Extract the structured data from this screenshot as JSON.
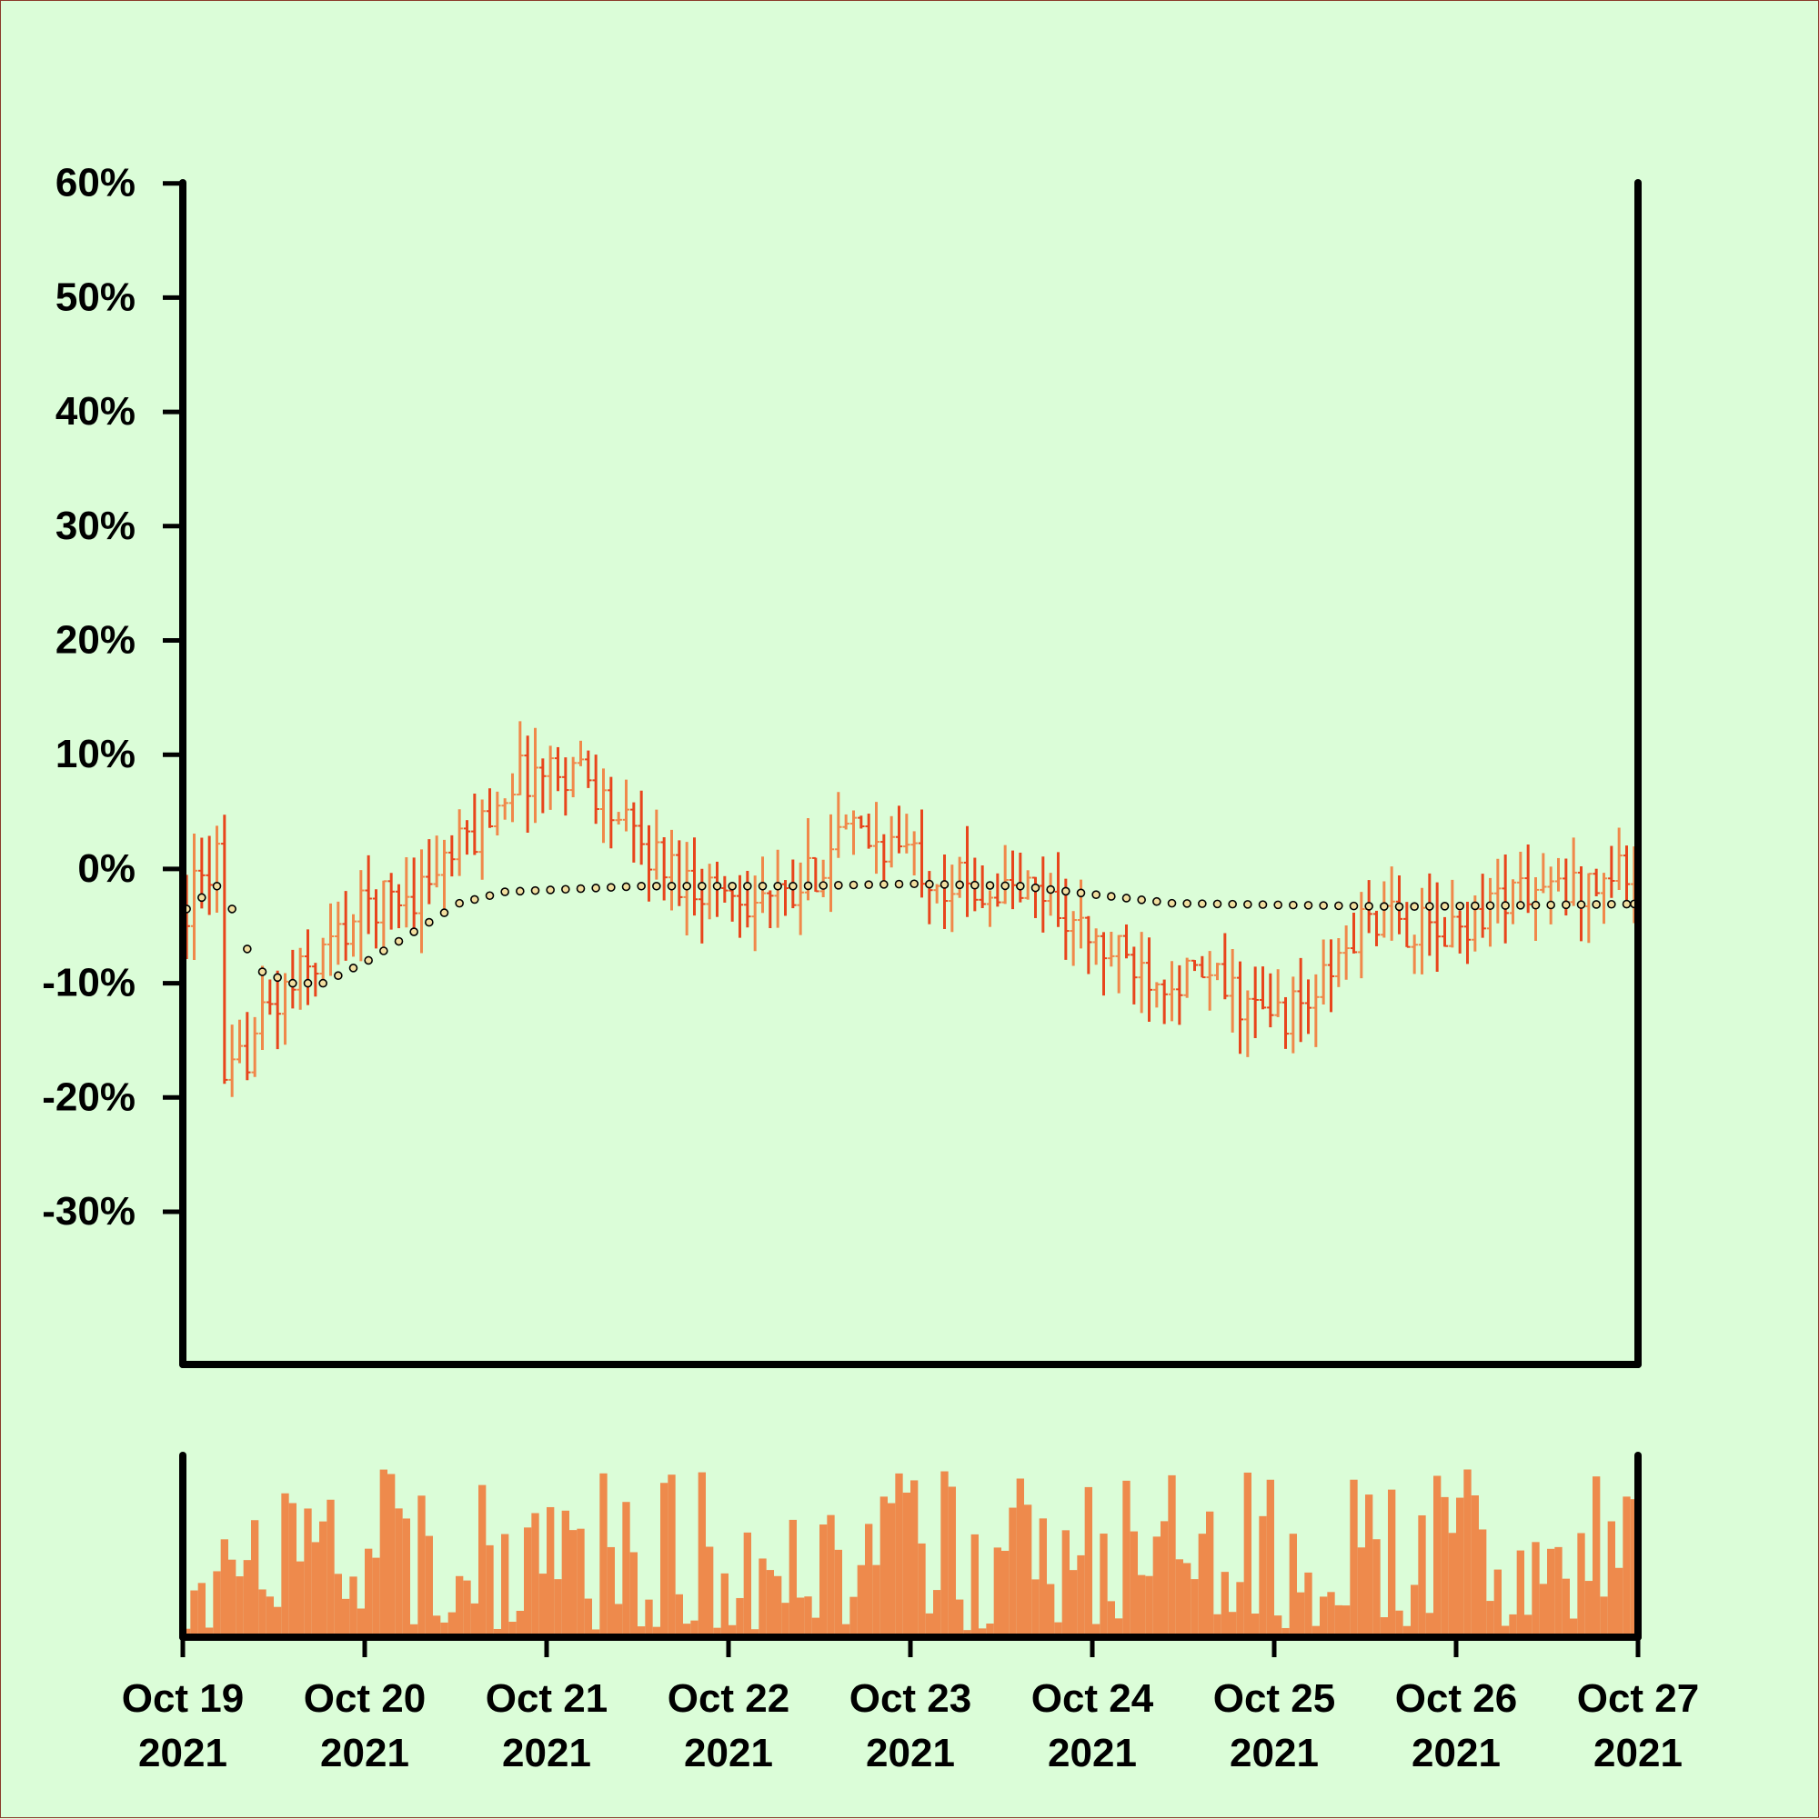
{
  "chart_data": {
    "type": "ohlc",
    "title": "",
    "xlabel": "",
    "ylabel": "",
    "ylim": [
      -37,
      63
    ],
    "y_tick_values": [
      60,
      50,
      40,
      30,
      20,
      10,
      0,
      -10,
      -20,
      -30
    ],
    "y_tick_labels": [
      "60%",
      "50%",
      "40%",
      "30%",
      "20%",
      "10%",
      "0%",
      "-10%",
      "-20%",
      "-30%"
    ],
    "x_ticks": [
      {
        "day": 0,
        "line1": "Oct 19",
        "line2": "2021"
      },
      {
        "day": 1,
        "line1": "Oct 20",
        "line2": "2021"
      },
      {
        "day": 2,
        "line1": "Oct 21",
        "line2": "2021"
      },
      {
        "day": 3,
        "line1": "Oct 22",
        "line2": "2021"
      },
      {
        "day": 4,
        "line1": "Oct 23",
        "line2": "2021"
      },
      {
        "day": 5,
        "line1": "Oct 24",
        "line2": "2021"
      },
      {
        "day": 6,
        "line1": "Oct 25",
        "line2": "2021"
      },
      {
        "day": 7,
        "line1": "Oct 26",
        "line2": "2021"
      },
      {
        "day": 8,
        "line1": "Oct 27",
        "line2": "2021"
      }
    ],
    "grid": false,
    "legend": "none",
    "bars_per_day": 24,
    "price_anchors_percent": [
      [
        0,
        -3
      ],
      [
        4,
        1
      ],
      [
        5,
        -20
      ],
      [
        10,
        -13
      ],
      [
        17,
        -8
      ],
      [
        24,
        -3
      ],
      [
        30,
        -2
      ],
      [
        38,
        3
      ],
      [
        43,
        8
      ],
      [
        52,
        9
      ],
      [
        56,
        5
      ],
      [
        60,
        2
      ],
      [
        66,
        -1
      ],
      [
        72,
        -2
      ],
      [
        80,
        -3
      ],
      [
        86,
        3
      ],
      [
        94,
        2
      ],
      [
        100,
        -1
      ],
      [
        108,
        -2
      ],
      [
        113,
        -2
      ],
      [
        120,
        -7
      ],
      [
        128,
        -9
      ],
      [
        136,
        -10
      ],
      [
        142,
        -13
      ],
      [
        148,
        -12
      ],
      [
        156,
        -4
      ],
      [
        166,
        -6
      ],
      [
        174,
        -2
      ],
      [
        182,
        -2
      ],
      [
        190,
        0
      ],
      [
        198,
        -1
      ],
      [
        206,
        -1
      ],
      [
        212,
        2
      ],
      [
        218,
        2
      ],
      [
        224,
        -4
      ],
      [
        232,
        -7
      ],
      [
        240,
        -8
      ],
      [
        246,
        -12
      ],
      [
        252,
        -14
      ],
      [
        260,
        -12
      ],
      [
        266,
        -11
      ],
      [
        272,
        -10
      ],
      [
        280,
        -8
      ],
      [
        288,
        -7
      ]
    ],
    "sma_percent": [
      [
        0,
        -3.5
      ],
      [
        5,
        -1
      ],
      [
        7,
        -6
      ],
      [
        10,
        -9
      ],
      [
        14,
        -10
      ],
      [
        18,
        -10
      ],
      [
        24,
        -8
      ],
      [
        36,
        -3
      ],
      [
        42,
        -2
      ],
      [
        60,
        -1.5
      ],
      [
        80,
        -1.5
      ],
      [
        96,
        -1.3
      ],
      [
        110,
        -1.5
      ],
      [
        130,
        -3
      ],
      [
        160,
        -3.3
      ],
      [
        200,
        -3
      ],
      [
        220,
        -3.2
      ],
      [
        280,
        -4
      ],
      [
        288,
        -4.2
      ]
    ],
    "volume_range": [
      2,
      100
    ],
    "colors": {
      "background": "#dbfdd8",
      "up": "#f0884a",
      "down": "#e8451c",
      "volume": "#ee8a4c",
      "sma_fill": "#f2dfa0",
      "axis": "#000000"
    }
  }
}
